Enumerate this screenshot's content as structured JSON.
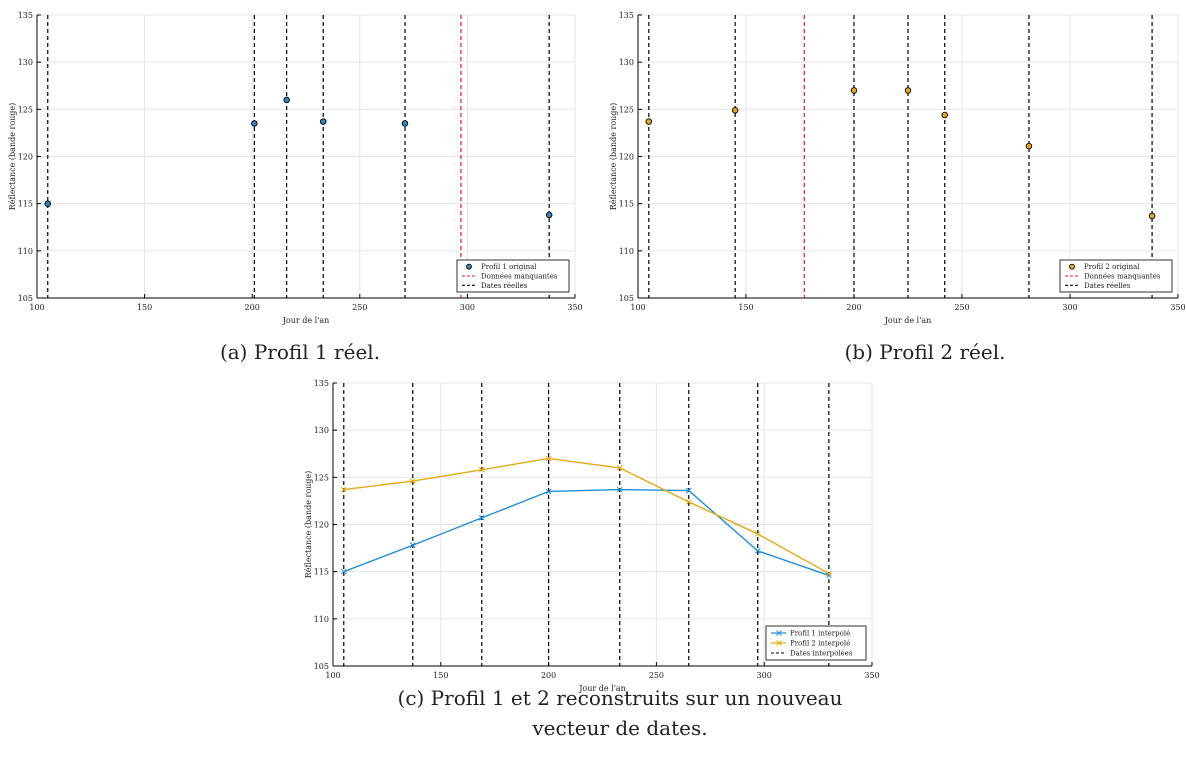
{
  "chart_data": [
    {
      "type": "scatter",
      "xlabel": "Jour de l'an",
      "ylabel": "Réflectance (bande rouge)",
      "xlim": [
        100,
        350
      ],
      "ylim": [
        105,
        135
      ],
      "xticks": [
        "100",
        "150",
        "200",
        "250",
        "300",
        "350"
      ],
      "yticks": [
        "105",
        "110",
        "115",
        "120",
        "125",
        "130",
        "135"
      ],
      "grid": true,
      "legend_position": "bottom-right",
      "series": [
        {
          "name": "Profil 1 original",
          "kind": "points",
          "color": "#2e86c1",
          "x": [
            105,
            201,
            216,
            233,
            271,
            338
          ],
          "y": [
            115.0,
            123.5,
            126.0,
            123.7,
            123.5,
            113.8
          ]
        }
      ],
      "vlines": [
        {
          "name": "Données manquantes",
          "color": "#e41a1c",
          "x": [
            297
          ]
        },
        {
          "name": "Dates réelles",
          "color": "#000000",
          "x": [
            105,
            201,
            216,
            233,
            271,
            338
          ]
        }
      ],
      "caption": "(a) Profil 1 réel."
    },
    {
      "type": "scatter",
      "xlabel": "Jour de l'an",
      "ylabel": "Réflectance (bande rouge)",
      "xlim": [
        100,
        350
      ],
      "ylim": [
        105,
        135
      ],
      "xticks": [
        "100",
        "150",
        "200",
        "250",
        "300",
        "350"
      ],
      "yticks": [
        "105",
        "110",
        "115",
        "120",
        "125",
        "130",
        "135"
      ],
      "grid": true,
      "legend_position": "bottom-right",
      "series": [
        {
          "name": "Profil 2 original",
          "kind": "points",
          "color": "#e6a817",
          "x": [
            105,
            145,
            200,
            225,
            242,
            281,
            338
          ],
          "y": [
            123.7,
            124.9,
            127.0,
            127.0,
            124.4,
            121.1,
            113.7
          ]
        }
      ],
      "vlines": [
        {
          "name": "Données manquantes",
          "color": "#e41a1c",
          "x": [
            177
          ]
        },
        {
          "name": "Dates réelles",
          "color": "#000000",
          "x": [
            105,
            145,
            200,
            225,
            242,
            281,
            338
          ]
        }
      ],
      "caption": "(b) Profil 2 réel."
    },
    {
      "type": "line",
      "xlabel": "Jour de l'an",
      "ylabel": "Réflectance (bande rouge)",
      "xlim": [
        100,
        350
      ],
      "ylim": [
        105,
        135
      ],
      "xticks": [
        "100",
        "150",
        "200",
        "250",
        "300",
        "350"
      ],
      "yticks": [
        "105",
        "110",
        "115",
        "120",
        "125",
        "130",
        "135"
      ],
      "grid": true,
      "legend_position": "bottom-right",
      "series": [
        {
          "name": "Profil 1 interpolé",
          "kind": "line",
          "color": "#1f8fd6",
          "x": [
            105,
            137,
            169,
            200,
            233,
            265,
            297,
            330
          ],
          "y": [
            115.0,
            117.8,
            120.7,
            123.5,
            123.7,
            123.6,
            117.2,
            114.6
          ]
        },
        {
          "name": "Profil 2 interpolé",
          "kind": "line",
          "color": "#e6a817",
          "x": [
            105,
            137,
            169,
            200,
            233,
            265,
            297,
            330
          ],
          "y": [
            123.7,
            124.6,
            125.8,
            127.0,
            126.0,
            122.4,
            119.0,
            114.8
          ]
        }
      ],
      "vlines": [
        {
          "name": "Dates interpolées",
          "color": "#000000",
          "x": [
            105,
            137,
            169,
            200,
            233,
            265,
            297,
            330
          ]
        }
      ],
      "caption": "(c) Profil 1 et 2 reconstruits sur un nouveau vecteur de dates."
    }
  ]
}
